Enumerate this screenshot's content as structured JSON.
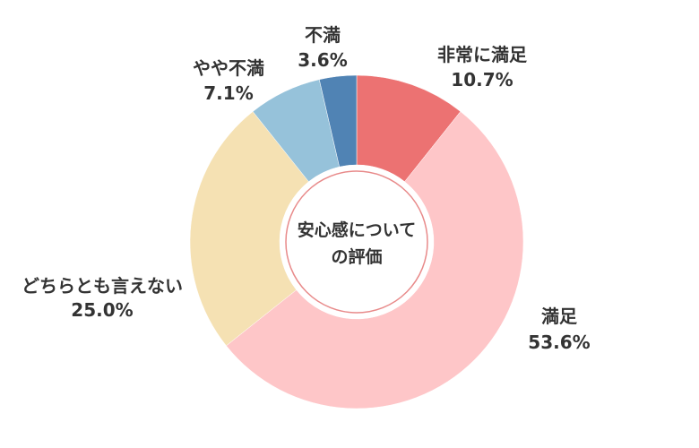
{
  "chart_data": {
    "type": "pie",
    "variant": "donut",
    "center_text": [
      "安心感について",
      "の評価"
    ],
    "slices": [
      {
        "label": "非常に満足",
        "value": 10.7,
        "value_text": "10.7%",
        "color": "#ec7272"
      },
      {
        "label": "満足",
        "value": 53.6,
        "value_text": "53.6%",
        "color": "#fec6c8"
      },
      {
        "label": "どちらとも言えない",
        "value": 25.0,
        "value_text": "25.0%",
        "color": "#f5e1b3"
      },
      {
        "label": "やや不満",
        "value": 7.1,
        "value_text": "7.1%",
        "color": "#96c2da"
      },
      {
        "label": "不満",
        "value": 3.6,
        "value_text": "3.6%",
        "color": "#5083b4"
      }
    ],
    "start": "12 o'clock",
    "direction": "clockwise",
    "legend": "none"
  }
}
